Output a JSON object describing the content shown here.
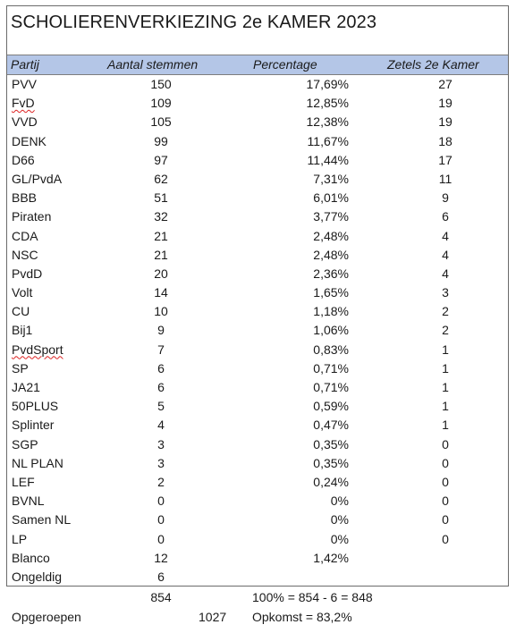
{
  "document": {
    "title": "SCHOLIERENVERKIEZING 2e KAMER 2023",
    "headers": {
      "party": "Partij",
      "votes": "Aantal stemmen",
      "percentage": "Percentage",
      "seats": "Zetels 2e Kamer"
    },
    "rows": [
      {
        "party": "PVV",
        "votes": "150",
        "pct": "17,69%",
        "seats": "27"
      },
      {
        "party": "FvD",
        "votes": "109",
        "pct": "12,85%",
        "seats": "19",
        "flagged": true
      },
      {
        "party": "VVD",
        "votes": "105",
        "pct": "12,38%",
        "seats": "19"
      },
      {
        "party": "DENK",
        "votes": "99",
        "pct": "11,67%",
        "seats": "18"
      },
      {
        "party": "D66",
        "votes": "97",
        "pct": "11,44%",
        "seats": "17"
      },
      {
        "party": "GL/PvdA",
        "votes": "62",
        "pct": "7,31%",
        "seats": "11"
      },
      {
        "party": "BBB",
        "votes": "51",
        "pct": "6,01%",
        "seats": "9"
      },
      {
        "party": "Piraten",
        "votes": "32",
        "pct": "3,77%",
        "seats": "6"
      },
      {
        "party": "CDA",
        "votes": "21",
        "pct": "2,48%",
        "seats": "4"
      },
      {
        "party": "NSC",
        "votes": "21",
        "pct": "2,48%",
        "seats": "4"
      },
      {
        "party": "PvdD",
        "votes": "20",
        "pct": "2,36%",
        "seats": "4"
      },
      {
        "party": "Volt",
        "votes": "14",
        "pct": "1,65%",
        "seats": "3"
      },
      {
        "party": "CU",
        "votes": "10",
        "pct": "1,18%",
        "seats": "2"
      },
      {
        "party": "Bij1",
        "votes": "9",
        "pct": "1,06%",
        "seats": "2"
      },
      {
        "party": "PvdSport",
        "votes": "7",
        "pct": "0,83%",
        "seats": "1",
        "flagged": true
      },
      {
        "party": "SP",
        "votes": "6",
        "pct": "0,71%",
        "seats": "1"
      },
      {
        "party": "JA21",
        "votes": "6",
        "pct": "0,71%",
        "seats": "1"
      },
      {
        "party": "50PLUS",
        "votes": "5",
        "pct": "0,59%",
        "seats": "1"
      },
      {
        "party": "Splinter",
        "votes": "4",
        "pct": "0,47%",
        "seats": "1"
      },
      {
        "party": "SGP",
        "votes": "3",
        "pct": "0,35%",
        "seats": "0"
      },
      {
        "party": "NL PLAN",
        "votes": "3",
        "pct": "0,35%",
        "seats": "0"
      },
      {
        "party": "LEF",
        "votes": "2",
        "pct": "0,24%",
        "seats": "0"
      },
      {
        "party": "BVNL",
        "votes": "0",
        "pct": "0%",
        "seats": "0"
      },
      {
        "party": "Samen NL",
        "votes": "0",
        "pct": "0%",
        "seats": "0"
      },
      {
        "party": "LP",
        "votes": "0",
        "pct": "0%",
        "seats": "0"
      },
      {
        "party": "Blanco",
        "votes": "12",
        "pct": "1,42%",
        "seats": ""
      },
      {
        "party": "Ongeldig",
        "votes": "6",
        "pct": "",
        "seats": ""
      }
    ],
    "footer": {
      "total_votes": "854",
      "formula": "100% = 854 - 6 = 848",
      "called_label": "Opgeroepen",
      "called_value": "1027",
      "turnout": "Opkomst = 83,2%"
    }
  }
}
